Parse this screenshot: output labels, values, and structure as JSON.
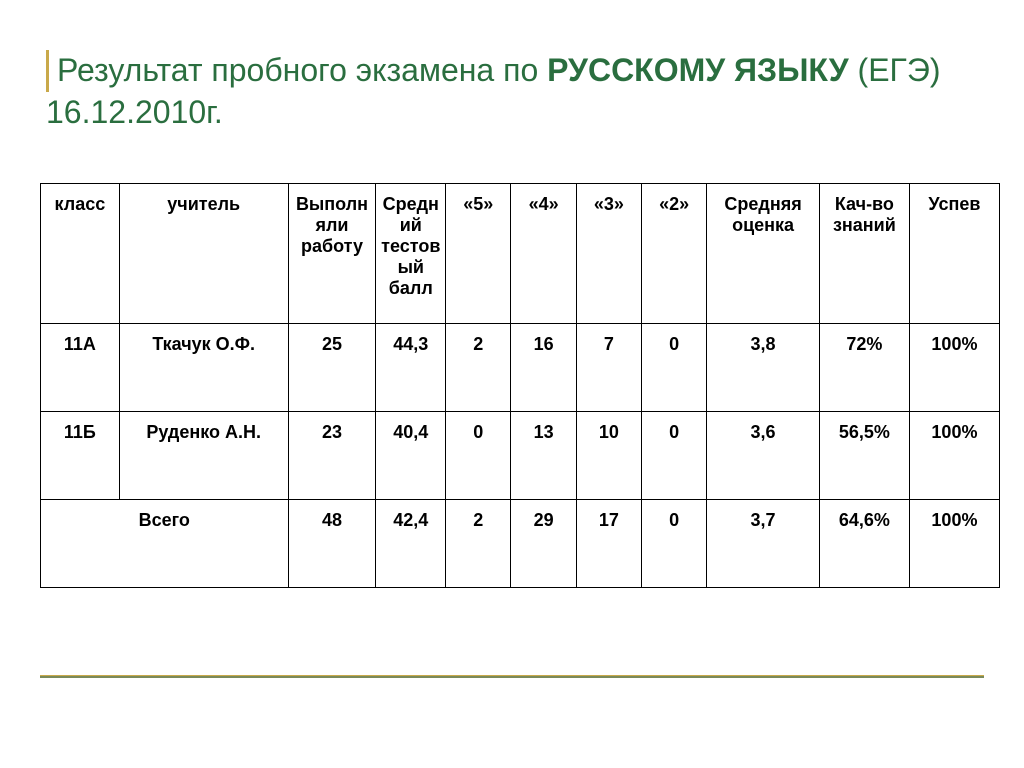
{
  "title": {
    "part1": "Результат  пробного  экзамена по ",
    "part2_bold": "РУССКОМУ ЯЗЫКУ",
    "part3": " (ЕГЭ)",
    "line2": "16.12.2010г."
  },
  "colors": {
    "title_color": "#2a6e3f",
    "accent_bar": "#c9a94a",
    "border": "#000000",
    "text": "#000000",
    "background": "#ffffff"
  },
  "table": {
    "headers": {
      "class": "класс",
      "teacher": "учитель",
      "completed": "Выполняли работу",
      "avg_test": "Средний тестовый балл",
      "g5": "«5»",
      "g4": "«4»",
      "g3": "«3»",
      "g2": "«2»",
      "avg_grade": "Средняя оценка",
      "quality": "Кач-во знаний",
      "pass": "Успев"
    },
    "rows": [
      {
        "class": "11А",
        "teacher": "Ткачук О.Ф.",
        "completed": "25",
        "avg_test": "44,3",
        "g5": "2",
        "g4": "16",
        "g3": "7",
        "g2": "0",
        "avg_grade": "3,8",
        "quality": "72%",
        "pass": "100%"
      },
      {
        "class": "11Б",
        "teacher": "Руденко А.Н.",
        "completed": "23",
        "avg_test": "40,4",
        "g5": "0",
        "g4": "13",
        "g3": "10",
        "g2": "0",
        "avg_grade": "3,6",
        "quality": "56,5%",
        "pass": "100%"
      }
    ],
    "total": {
      "label": "Всего",
      "completed": "48",
      "avg_test": "42,4",
      "g5": "2",
      "g4": "29",
      "g3": "17",
      "g2": "0",
      "avg_grade": "3,7",
      "quality": "64,6%",
      "pass": "100%"
    }
  }
}
